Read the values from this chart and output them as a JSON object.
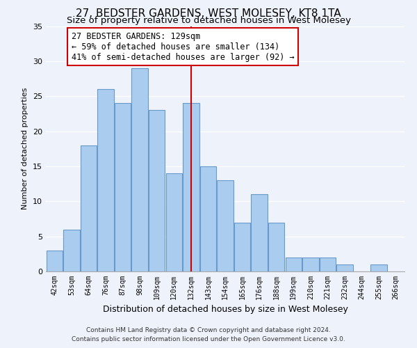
{
  "title": "27, BEDSTER GARDENS, WEST MOLESEY, KT8 1TA",
  "subtitle": "Size of property relative to detached houses in West Molesey",
  "xlabel": "Distribution of detached houses by size in West Molesey",
  "ylabel": "Number of detached properties",
  "bar_labels": [
    "42sqm",
    "53sqm",
    "64sqm",
    "76sqm",
    "87sqm",
    "98sqm",
    "109sqm",
    "120sqm",
    "132sqm",
    "143sqm",
    "154sqm",
    "165sqm",
    "176sqm",
    "188sqm",
    "199sqm",
    "210sqm",
    "221sqm",
    "232sqm",
    "244sqm",
    "255sqm",
    "266sqm"
  ],
  "bar_values": [
    3,
    6,
    18,
    26,
    24,
    29,
    23,
    14,
    24,
    15,
    13,
    7,
    11,
    7,
    2,
    2,
    2,
    1,
    0,
    1,
    0
  ],
  "bar_color": "#aaccee",
  "bar_edge_color": "#6699cc",
  "vline_color": "#cc0000",
  "annotation_title": "27 BEDSTER GARDENS: 129sqm",
  "annotation_line1": "← 59% of detached houses are smaller (134)",
  "annotation_line2": "41% of semi-detached houses are larger (92) →",
  "annotation_box_edge": "#cc0000",
  "ylim": [
    0,
    35
  ],
  "yticks": [
    0,
    5,
    10,
    15,
    20,
    25,
    30,
    35
  ],
  "footer1": "Contains HM Land Registry data © Crown copyright and database right 2024.",
  "footer2": "Contains public sector information licensed under the Open Government Licence v3.0.",
  "background_color": "#eef2fb",
  "grid_color": "#ffffff",
  "title_fontsize": 11,
  "subtitle_fontsize": 9.5,
  "annotation_fontsize": 8.5,
  "xlabel_fontsize": 9,
  "ylabel_fontsize": 8,
  "footer_fontsize": 6.5
}
